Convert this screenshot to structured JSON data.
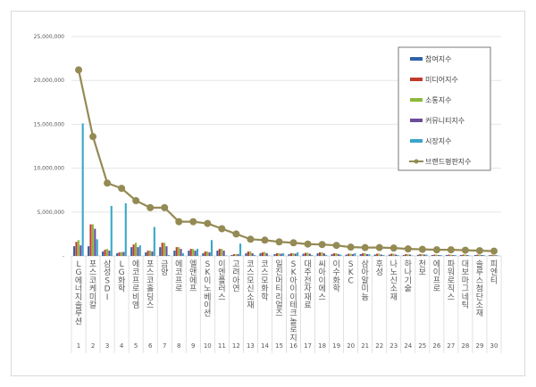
{
  "chart_data": {
    "type": "bar",
    "title": "",
    "xlabel": "",
    "ylabel": "",
    "ylim": [
      0,
      25000000
    ],
    "yticks": [
      "-",
      "5,000,000",
      "10,000,000",
      "15,000,000",
      "20,000,000",
      "25,000,000"
    ],
    "ytick_values": [
      0,
      5000000,
      10000000,
      15000000,
      20000000,
      25000000
    ],
    "grid": true,
    "legend_position": "top-right",
    "categories": [
      "LG에너지솔루션",
      "포스코케미칼",
      "삼성SDI",
      "LG화학",
      "에코프로비엠",
      "포스코홀딩스",
      "금양",
      "에코프로",
      "엘앤에프",
      "SK이노베이션",
      "이엔플러스",
      "고려아연",
      "코스모신소재",
      "코스모화학",
      "일진머티리얼즈",
      "SK아이이테크놀로지",
      "대주전자재료",
      "씨아이에스",
      "이수화학",
      "SKC",
      "삼아알미늄",
      "후성",
      "나노신소재",
      "하나기술",
      "천보",
      "에이프로",
      "파워로직스",
      "대보마그네틱",
      "솔루스첨단소재",
      "피엔티"
    ],
    "ranks": [
      "1",
      "2",
      "3",
      "4",
      "5",
      "6",
      "7",
      "8",
      "9",
      "10",
      "11",
      "12",
      "13",
      "14",
      "15",
      "16",
      "17",
      "18",
      "19",
      "20",
      "21",
      "22",
      "23",
      "24",
      "25",
      "26",
      "27",
      "28",
      "29",
      "30"
    ],
    "series": [
      {
        "name": "참여지수",
        "color": "#2e62a8",
        "type": "bar",
        "values": [
          1100000,
          1100000,
          500000,
          300000,
          1000000,
          400000,
          1000000,
          600000,
          600000,
          300000,
          600000,
          100000,
          300000,
          300000,
          200000,
          200000,
          250000,
          300000,
          200000,
          150000,
          200000,
          150000,
          150000,
          100000,
          120000,
          100000,
          100000,
          100000,
          100000,
          80000
        ]
      },
      {
        "name": "미디어지수",
        "color": "#c0392b",
        "type": "bar",
        "values": [
          1600000,
          3600000,
          700000,
          400000,
          1300000,
          600000,
          1500000,
          1000000,
          800000,
          500000,
          800000,
          200000,
          500000,
          400000,
          300000,
          300000,
          350000,
          400000,
          300000,
          250000,
          300000,
          250000,
          250000,
          200000,
          200000,
          150000,
          150000,
          150000,
          150000,
          120000
        ]
      },
      {
        "name": "소통지수",
        "color": "#8cb83c",
        "type": "bar",
        "values": [
          1800000,
          3600000,
          800000,
          450000,
          1500000,
          600000,
          1500000,
          1000000,
          800000,
          500000,
          800000,
          200000,
          500000,
          450000,
          300000,
          300000,
          350000,
          400000,
          300000,
          250000,
          300000,
          250000,
          250000,
          200000,
          200000,
          150000,
          150000,
          150000,
          150000,
          120000
        ]
      },
      {
        "name": "커뮤니티지수",
        "color": "#6b4c9a",
        "type": "bar",
        "values": [
          1200000,
          3100000,
          600000,
          450000,
          1000000,
          500000,
          1100000,
          800000,
          600000,
          400000,
          600000,
          200000,
          300000,
          300000,
          250000,
          250000,
          250000,
          300000,
          200000,
          200000,
          200000,
          150000,
          150000,
          150000,
          150000,
          100000,
          100000,
          100000,
          100000,
          80000
        ]
      },
      {
        "name": "시장지수",
        "color": "#3aa6c8",
        "type": "bar",
        "values": [
          15100000,
          1900000,
          5700000,
          6000000,
          1200000,
          3300000,
          100000,
          300000,
          800000,
          1800000,
          50000,
          1400000,
          100000,
          50000,
          300000,
          400000,
          100000,
          100000,
          150000,
          300000,
          200000,
          100000,
          100000,
          50000,
          150000,
          100000,
          100000,
          50000,
          100000,
          50000
        ]
      },
      {
        "name": "브랜드평판지수",
        "color": "#948a54",
        "type": "line",
        "values": [
          21200000,
          13600000,
          8300000,
          7700000,
          6300000,
          5500000,
          5500000,
          3900000,
          3900000,
          3700000,
          3100000,
          2500000,
          1900000,
          1800000,
          1600000,
          1500000,
          1350000,
          1300000,
          1200000,
          1000000,
          950000,
          950000,
          900000,
          800000,
          750000,
          700000,
          700000,
          650000,
          600000,
          550000
        ]
      }
    ]
  }
}
